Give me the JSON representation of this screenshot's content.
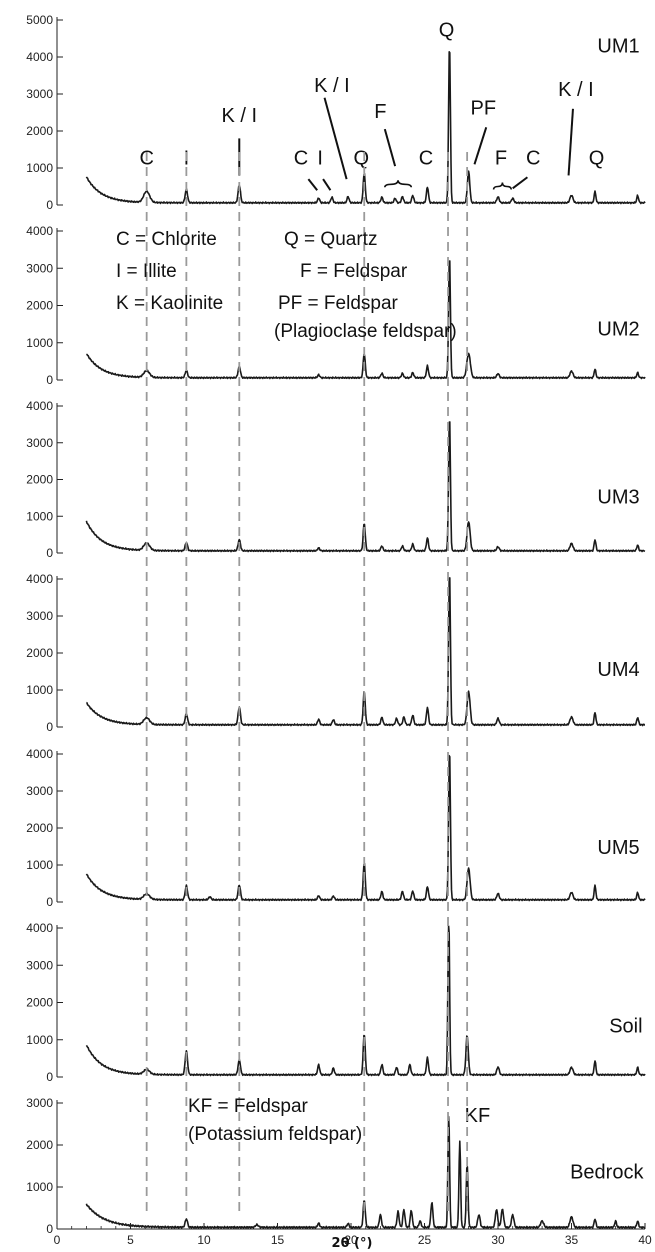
{
  "chart_data": {
    "type": "line",
    "xlabel": "2θ (°)",
    "xlim": [
      0,
      40
    ],
    "x_ticks": [
      0,
      5,
      10,
      15,
      20,
      25,
      30,
      35,
      40
    ],
    "grid": false,
    "legend_lines": [
      "C = Chlorite",
      "Q = Quartz",
      "I = Illite",
      "F = Feldspar",
      "K = Kaolinite",
      "PF = Feldspar",
      "(Plagioclase feldspar)",
      "KF = Feldspar",
      "(Potassium feldspar)"
    ],
    "reference_lines_2theta": [
      6.1,
      8.8,
      12.4,
      20.9,
      26.6,
      27.9
    ],
    "panels": [
      {
        "sample": "UM1",
        "ylim": [
          0,
          5000
        ],
        "y_ticks": [
          0,
          1000,
          2000,
          3000,
          4000,
          5000
        ],
        "baseline": 60,
        "start_height": 700,
        "start_decay": 1.0,
        "peaks": [
          [
            6.1,
            300,
            0.2
          ],
          [
            8.8,
            370,
            0.08
          ],
          [
            12.4,
            480,
            0.08
          ],
          [
            17.8,
            130,
            0.07
          ],
          [
            18.7,
            150,
            0.07
          ],
          [
            19.8,
            170,
            0.07
          ],
          [
            20.9,
            800,
            0.07
          ],
          [
            22.1,
            150,
            0.07
          ],
          [
            23.0,
            120,
            0.07
          ],
          [
            23.5,
            170,
            0.07
          ],
          [
            24.2,
            200,
            0.07
          ],
          [
            25.2,
            430,
            0.07
          ],
          [
            26.7,
            4300,
            0.06
          ],
          [
            28.0,
            850,
            0.08
          ],
          [
            30.0,
            160,
            0.08
          ],
          [
            31.0,
            120,
            0.08
          ],
          [
            35.0,
            200,
            0.1
          ],
          [
            36.6,
            300,
            0.06
          ],
          [
            39.5,
            200,
            0.06
          ]
        ],
        "annotations": [
          {
            "text": "C",
            "x": 6.1,
            "y": 1100
          },
          {
            "text": "I",
            "x": 8.8,
            "y": 1100
          },
          {
            "text": "K / I",
            "x": 12.4,
            "y": 2250
          },
          {
            "text": "C",
            "x": 16.6,
            "y": 1100
          },
          {
            "text": "I",
            "x": 17.9,
            "y": 1100
          },
          {
            "text": "K / I",
            "x": 18.7,
            "y": 3050
          },
          {
            "text": "Q",
            "x": 20.7,
            "y": 1100
          },
          {
            "text": "F",
            "x": 22.0,
            "y": 2350
          },
          {
            "text": "C",
            "x": 25.1,
            "y": 1100
          },
          {
            "text": "Q",
            "x": 26.5,
            "y": 4550
          },
          {
            "text": "PF",
            "x": 29.0,
            "y": 2450
          },
          {
            "text": "F",
            "x": 30.2,
            "y": 1100
          },
          {
            "text": "C",
            "x": 32.4,
            "y": 1100
          },
          {
            "text": "K / I",
            "x": 35.3,
            "y": 2950
          },
          {
            "text": "Q",
            "x": 36.7,
            "y": 1100
          },
          {
            "text": "UM1",
            "x": 38.2,
            "y": 4120
          }
        ]
      },
      {
        "sample": "UM2",
        "ylim": [
          0,
          4000
        ],
        "y_ticks": [
          0,
          1000,
          2000,
          3000,
          4000
        ],
        "baseline": 60,
        "start_height": 650,
        "start_decay": 1.0,
        "peaks": [
          [
            6.1,
            180,
            0.2
          ],
          [
            8.8,
            200,
            0.08
          ],
          [
            12.4,
            300,
            0.08
          ],
          [
            17.8,
            80,
            0.07
          ],
          [
            20.9,
            650,
            0.07
          ],
          [
            22.1,
            120,
            0.07
          ],
          [
            23.5,
            120,
            0.07
          ],
          [
            24.2,
            140,
            0.07
          ],
          [
            25.2,
            320,
            0.07
          ],
          [
            26.7,
            3300,
            0.06
          ],
          [
            28.0,
            650,
            0.12
          ],
          [
            30.0,
            110,
            0.08
          ],
          [
            35.0,
            180,
            0.1
          ],
          [
            36.6,
            230,
            0.06
          ],
          [
            39.5,
            140,
            0.06
          ]
        ],
        "annotations": [
          {
            "text": "UM2",
            "x": 38.2,
            "y": 1200
          }
        ]
      },
      {
        "sample": "UM3",
        "ylim": [
          0,
          4000
        ],
        "y_ticks": [
          0,
          1000,
          2000,
          3000,
          4000
        ],
        "baseline": 60,
        "start_height": 800,
        "start_decay": 1.0,
        "peaks": [
          [
            6.1,
            200,
            0.2
          ],
          [
            8.8,
            230,
            0.08
          ],
          [
            12.4,
            300,
            0.08
          ],
          [
            17.8,
            80,
            0.07
          ],
          [
            20.9,
            750,
            0.07
          ],
          [
            22.1,
            130,
            0.07
          ],
          [
            23.5,
            130,
            0.07
          ],
          [
            24.2,
            180,
            0.07
          ],
          [
            25.2,
            350,
            0.07
          ],
          [
            26.7,
            3700,
            0.06
          ],
          [
            28.0,
            800,
            0.1
          ],
          [
            30.0,
            110,
            0.08
          ],
          [
            35.0,
            200,
            0.1
          ],
          [
            36.6,
            300,
            0.06
          ],
          [
            39.5,
            160,
            0.06
          ]
        ],
        "annotations": [
          {
            "text": "UM3",
            "x": 38.2,
            "y": 1350
          }
        ]
      },
      {
        "sample": "UM4",
        "ylim": [
          0,
          4000
        ],
        "y_ticks": [
          0,
          1000,
          2000,
          3000,
          4000
        ],
        "baseline": 60,
        "start_height": 600,
        "start_decay": 1.0,
        "peaks": [
          [
            6.1,
            180,
            0.2
          ],
          [
            8.8,
            300,
            0.08
          ],
          [
            12.4,
            480,
            0.08
          ],
          [
            17.8,
            150,
            0.07
          ],
          [
            18.8,
            140,
            0.07
          ],
          [
            20.9,
            900,
            0.07
          ],
          [
            22.1,
            200,
            0.07
          ],
          [
            23.1,
            170,
            0.07
          ],
          [
            23.6,
            210,
            0.07
          ],
          [
            24.2,
            260,
            0.07
          ],
          [
            25.2,
            470,
            0.07
          ],
          [
            26.7,
            4200,
            0.06
          ],
          [
            28.0,
            900,
            0.1
          ],
          [
            30.0,
            170,
            0.08
          ],
          [
            35.0,
            210,
            0.1
          ],
          [
            36.6,
            330,
            0.06
          ],
          [
            39.5,
            200,
            0.06
          ]
        ],
        "annotations": [
          {
            "text": "UM4",
            "x": 38.2,
            "y": 1380
          }
        ]
      },
      {
        "sample": "UM5",
        "ylim": [
          0,
          4000
        ],
        "y_ticks": [
          0,
          1000,
          2000,
          3000,
          4000
        ],
        "baseline": 60,
        "start_height": 700,
        "start_decay": 1.0,
        "peaks": [
          [
            6.1,
            150,
            0.2
          ],
          [
            8.8,
            380,
            0.08
          ],
          [
            10.4,
            80,
            0.08
          ],
          [
            12.4,
            400,
            0.08
          ],
          [
            17.8,
            110,
            0.07
          ],
          [
            18.8,
            100,
            0.07
          ],
          [
            20.9,
            1000,
            0.07
          ],
          [
            22.1,
            220,
            0.07
          ],
          [
            23.5,
            230,
            0.07
          ],
          [
            24.2,
            240,
            0.07
          ],
          [
            25.2,
            360,
            0.07
          ],
          [
            26.7,
            4100,
            0.06
          ],
          [
            28.0,
            850,
            0.1
          ],
          [
            30.0,
            170,
            0.08
          ],
          [
            35.0,
            200,
            0.1
          ],
          [
            36.6,
            380,
            0.06
          ],
          [
            39.5,
            200,
            0.06
          ]
        ],
        "annotations": [
          {
            "text": "UM5",
            "x": 38.2,
            "y": 1300
          }
        ]
      },
      {
        "sample": "Soil",
        "ylim": [
          0,
          4000
        ],
        "y_ticks": [
          0,
          1000,
          2000,
          3000,
          4000
        ],
        "baseline": 60,
        "start_height": 800,
        "start_decay": 1.0,
        "peaks": [
          [
            6.1,
            130,
            0.2
          ],
          [
            8.8,
            650,
            0.08
          ],
          [
            12.4,
            400,
            0.08
          ],
          [
            17.8,
            270,
            0.07
          ],
          [
            18.8,
            180,
            0.07
          ],
          [
            20.9,
            1100,
            0.07
          ],
          [
            22.1,
            270,
            0.07
          ],
          [
            23.1,
            200,
            0.07
          ],
          [
            24.0,
            270,
            0.07
          ],
          [
            25.2,
            460,
            0.07
          ],
          [
            26.65,
            4400,
            0.055
          ],
          [
            27.9,
            1050,
            0.08
          ],
          [
            30.0,
            210,
            0.08
          ],
          [
            35.0,
            200,
            0.1
          ],
          [
            36.6,
            370,
            0.06
          ],
          [
            39.5,
            200,
            0.06
          ]
        ],
        "annotations": [
          {
            "text": "Soil",
            "x": 38.7,
            "y": 1200
          }
        ]
      },
      {
        "sample": "Bedrock",
        "ylim": [
          0,
          3000
        ],
        "y_ticks": [
          0,
          1000,
          2000,
          3000
        ],
        "baseline": 40,
        "start_height": 550,
        "start_decay": 1.2,
        "peaks": [
          [
            8.8,
            200,
            0.08
          ],
          [
            13.6,
            60,
            0.1
          ],
          [
            17.8,
            100,
            0.07
          ],
          [
            19.8,
            90,
            0.07
          ],
          [
            20.9,
            650,
            0.07
          ],
          [
            22.0,
            300,
            0.07
          ],
          [
            23.2,
            380,
            0.07
          ],
          [
            23.6,
            420,
            0.07
          ],
          [
            24.1,
            400,
            0.07
          ],
          [
            24.7,
            150,
            0.07
          ],
          [
            25.5,
            600,
            0.07
          ],
          [
            26.65,
            2700,
            0.055
          ],
          [
            27.4,
            2050,
            0.055
          ],
          [
            27.9,
            1500,
            0.06
          ],
          [
            28.7,
            300,
            0.08
          ],
          [
            29.9,
            420,
            0.08
          ],
          [
            30.3,
            430,
            0.08
          ],
          [
            31.0,
            300,
            0.08
          ],
          [
            33.0,
            150,
            0.1
          ],
          [
            35.0,
            250,
            0.1
          ],
          [
            36.6,
            200,
            0.06
          ],
          [
            38.0,
            150,
            0.06
          ],
          [
            39.5,
            150,
            0.06
          ]
        ],
        "annotations": [
          {
            "text": "KF",
            "x": 28.6,
            "y": 2550
          },
          {
            "text": "Bedrock",
            "x": 37.4,
            "y": 1200
          }
        ]
      }
    ]
  }
}
